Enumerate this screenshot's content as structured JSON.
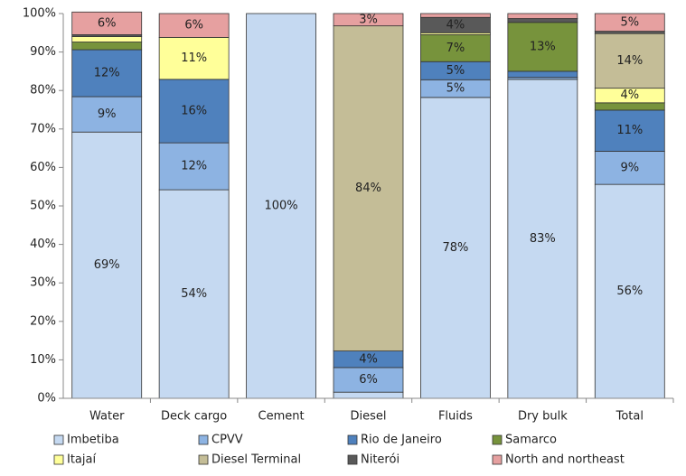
{
  "chart_data": {
    "type": "stacked-bar",
    "categories": [
      "Water",
      "Deck cargo",
      "Cement",
      "Diesel",
      "Fluids",
      "Dry bulk",
      "Total"
    ],
    "series": [
      {
        "name": "Imbetiba",
        "color": "#c5d9f1",
        "values": [
          69.2,
          54.2,
          100,
          1.6,
          78.2,
          82.9,
          55.6
        ],
        "value_labels": [
          "69%",
          "54%",
          "100%",
          null,
          "78%",
          "83%",
          "56%"
        ]
      },
      {
        "name": "CPVV",
        "color": "#8db3e2",
        "values": [
          9.2,
          12.2,
          0,
          6.4,
          4.6,
          0.5,
          8.6
        ],
        "value_labels": [
          "9%",
          "12%",
          null,
          "6%",
          "5%",
          null,
          "9%"
        ]
      },
      {
        "name": "Rio de Janeiro",
        "color": "#4f81bd",
        "values": [
          12.2,
          16.5,
          0,
          4.3,
          4.7,
          1.6,
          10.7
        ],
        "value_labels": [
          "12%",
          "16%",
          null,
          "4%",
          "5%",
          null,
          "11%"
        ]
      },
      {
        "name": "Samarco",
        "color": "#77933c",
        "values": [
          2,
          0,
          0,
          0,
          7,
          12.7,
          1.9
        ],
        "value_labels": [
          null,
          null,
          null,
          null,
          "7%",
          "13%",
          null
        ]
      },
      {
        "name": "Itajaí",
        "color": "#ffff99",
        "values": [
          1.4,
          10.9,
          0,
          0,
          0.5,
          0,
          3.8
        ],
        "value_labels": [
          null,
          "11%",
          null,
          null,
          null,
          null,
          "4%"
        ]
      },
      {
        "name": "Diesel Terminal",
        "color": "#c4bd97",
        "values": [
          0,
          0,
          0,
          84.5,
          0,
          0,
          14.2
        ],
        "value_labels": [
          null,
          null,
          null,
          "84%",
          null,
          null,
          "14%"
        ]
      },
      {
        "name": "Niterói",
        "color": "#595959",
        "values": [
          0.5,
          0,
          0,
          0,
          4,
          1,
          0.6
        ],
        "value_labels": [
          null,
          null,
          null,
          null,
          "4%",
          null,
          null
        ]
      },
      {
        "name": "North and northeast",
        "color": "#e6a0a0",
        "values": [
          5.9,
          6.2,
          0,
          3.2,
          1,
          1.3,
          4.6
        ],
        "value_labels": [
          "6%",
          "6%",
          null,
          "3%",
          null,
          null,
          "5%"
        ]
      }
    ],
    "ylim": [
      0,
      100
    ],
    "yticks": [
      {
        "value": 0,
        "label": "0%"
      },
      {
        "value": 10,
        "label": "10%"
      },
      {
        "value": 20,
        "label": "20%"
      },
      {
        "value": 30,
        "label": "30%"
      },
      {
        "value": 40,
        "label": "40%"
      },
      {
        "value": 50,
        "label": "50%"
      },
      {
        "value": 60,
        "label": "60%"
      },
      {
        "value": 70,
        "label": "70%"
      },
      {
        "value": 80,
        "label": "80%"
      },
      {
        "value": 90,
        "label": "90%"
      },
      {
        "value": 100,
        "label": "100%"
      }
    ],
    "legend": "bottom"
  }
}
